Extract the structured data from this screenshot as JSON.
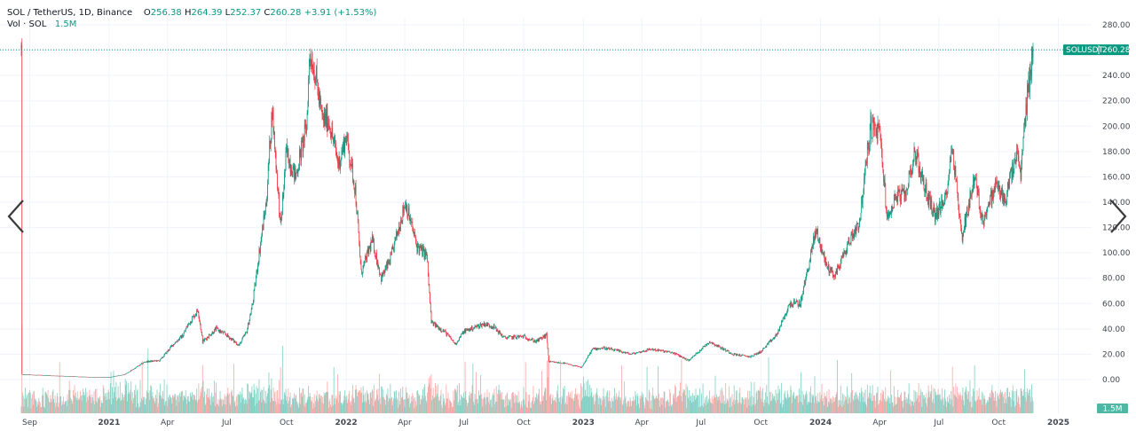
{
  "legend": {
    "symbol": "SOL / TetherUS, 1D, Binance",
    "open_label": "O",
    "open": "256.38",
    "high_label": "H",
    "high": "264.39",
    "low_label": "L",
    "low": "252.37",
    "close_label": "C",
    "close": "260.28",
    "change": "+3.91 (+1.53%)",
    "volume_label": "Vol · SOL",
    "volume": "1.5M"
  },
  "price_badge": {
    "symbol": "SOLUSDT",
    "value": "260.28"
  },
  "volume_badge": "1.5M",
  "colors": {
    "up": "#089981",
    "down": "#f23645",
    "up_volume": "#7fcfc2",
    "down_volume": "#f7a9a7",
    "grid": "#f0f3fa"
  },
  "icons": {
    "prev": "chevron-left-icon",
    "next": "chevron-right-icon"
  },
  "chart_data": {
    "type": "candlestick",
    "interval": "1D",
    "y_axis": {
      "ticks": [
        "280.00",
        "260.00",
        "240.00",
        "220.00",
        "200.00",
        "180.00",
        "160.00",
        "140.00",
        "120.00",
        "100.00",
        "80.00",
        "60.00",
        "40.00",
        "20.00",
        "0.00"
      ],
      "ylim": [
        -5,
        290
      ],
      "position": "right"
    },
    "x_axis": {
      "ticks": [
        "Sep",
        "2021",
        "Apr",
        "Jul",
        "Oct",
        "2022",
        "Apr",
        "Jul",
        "Oct",
        "2023",
        "Apr",
        "Jul",
        "Oct",
        "2024",
        "Apr",
        "Jul",
        "Oct",
        "2025"
      ]
    },
    "grid": true,
    "last_price": 260.28,
    "price_path": [
      [
        "2020-08-20",
        4.0
      ],
      [
        "2020-10-01",
        3.2
      ],
      [
        "2020-12-01",
        2.0
      ],
      [
        "2021-01-01",
        1.8
      ],
      [
        "2021-01-25",
        4
      ],
      [
        "2021-02-10",
        9
      ],
      [
        "2021-02-25",
        14
      ],
      [
        "2021-03-20",
        15
      ],
      [
        "2021-04-10",
        28
      ],
      [
        "2021-04-25",
        35
      ],
      [
        "2021-05-01",
        42
      ],
      [
        "2021-05-18",
        55
      ],
      [
        "2021-05-25",
        30
      ],
      [
        "2021-06-15",
        40
      ],
      [
        "2021-07-01",
        35
      ],
      [
        "2021-07-20",
        27
      ],
      [
        "2021-08-01",
        38
      ],
      [
        "2021-08-10",
        60
      ],
      [
        "2021-08-20",
        100
      ],
      [
        "2021-08-31",
        140
      ],
      [
        "2021-09-09",
        214
      ],
      [
        "2021-09-22",
        120
      ],
      [
        "2021-10-01",
        180
      ],
      [
        "2021-10-15",
        160
      ],
      [
        "2021-11-01",
        200
      ],
      [
        "2021-11-06",
        259
      ],
      [
        "2021-11-15",
        240
      ],
      [
        "2021-11-25",
        205
      ],
      [
        "2021-12-05",
        205
      ],
      [
        "2021-12-20",
        170
      ],
      [
        "2022-01-01",
        192
      ],
      [
        "2022-01-15",
        150
      ],
      [
        "2022-01-24",
        84
      ],
      [
        "2022-02-10",
        110
      ],
      [
        "2022-02-24",
        80
      ],
      [
        "2022-03-10",
        95
      ],
      [
        "2022-04-02",
        140
      ],
      [
        "2022-04-20",
        105
      ],
      [
        "2022-05-05",
        98
      ],
      [
        "2022-05-12",
        45
      ],
      [
        "2022-06-01",
        38
      ],
      [
        "2022-06-18",
        28
      ],
      [
        "2022-07-01",
        38
      ],
      [
        "2022-08-01",
        44
      ],
      [
        "2022-08-15",
        42
      ],
      [
        "2022-09-01",
        33
      ],
      [
        "2022-10-01",
        34
      ],
      [
        "2022-10-20",
        30
      ],
      [
        "2022-11-05",
        35
      ],
      [
        "2022-11-09",
        14
      ],
      [
        "2022-12-01",
        13
      ],
      [
        "2022-12-29",
        9.5
      ],
      [
        "2023-01-15",
        24
      ],
      [
        "2023-02-01",
        25
      ],
      [
        "2023-03-01",
        22
      ],
      [
        "2023-03-15",
        20
      ],
      [
        "2023-04-15",
        24
      ],
      [
        "2023-05-20",
        21
      ],
      [
        "2023-06-12",
        15
      ],
      [
        "2023-07-14",
        30
      ],
      [
        "2023-08-01",
        25
      ],
      [
        "2023-08-20",
        20
      ],
      [
        "2023-09-15",
        18
      ],
      [
        "2023-10-01",
        22
      ],
      [
        "2023-10-25",
        35
      ],
      [
        "2023-11-15",
        60
      ],
      [
        "2023-12-01",
        60
      ],
      [
        "2023-12-25",
        118
      ],
      [
        "2024-01-10",
        90
      ],
      [
        "2024-01-23",
        82
      ],
      [
        "2024-02-15",
        110
      ],
      [
        "2024-03-01",
        125
      ],
      [
        "2024-03-18",
        200
      ],
      [
        "2024-04-01",
        195
      ],
      [
        "2024-04-13",
        125
      ],
      [
        "2024-04-25",
        145
      ],
      [
        "2024-05-10",
        145
      ],
      [
        "2024-05-25",
        180
      ],
      [
        "2024-06-10",
        150
      ],
      [
        "2024-06-25",
        130
      ],
      [
        "2024-07-10",
        140
      ],
      [
        "2024-07-22",
        185
      ],
      [
        "2024-08-05",
        112
      ],
      [
        "2024-08-25",
        160
      ],
      [
        "2024-09-06",
        125
      ],
      [
        "2024-09-28",
        155
      ],
      [
        "2024-10-10",
        140
      ],
      [
        "2024-10-29",
        178
      ],
      [
        "2024-11-04",
        160
      ],
      [
        "2024-11-12",
        215
      ],
      [
        "2024-11-20",
        250
      ],
      [
        "2024-11-23",
        260.28
      ]
    ],
    "volume": {
      "last": "1.5M"
    }
  }
}
